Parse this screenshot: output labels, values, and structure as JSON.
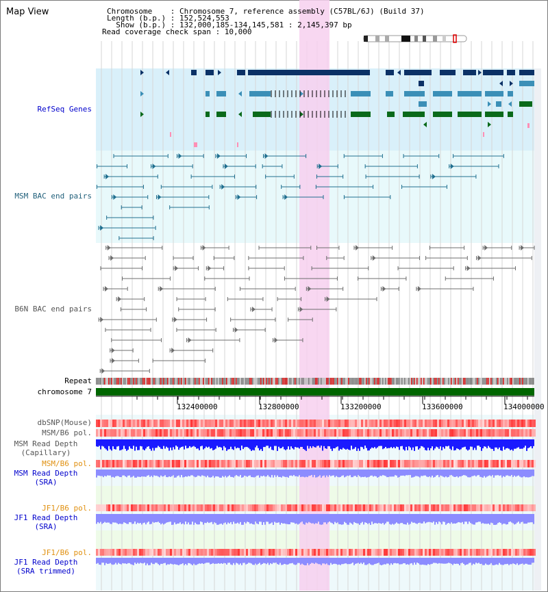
{
  "header": {
    "title": "Map View",
    "chromosome_line": "Chromosome    : Chromosome 7, reference assembly (C57BL/6J) (Build 37)",
    "length_line": "Length (b.p.) : 152,524,553",
    "show_line": "  Show (b.p.) : 132,000,185-134,145,581 : 2,145,397 bp",
    "coverage_line": "Read coverage check span : 10,000"
  },
  "tracks": {
    "refseq": "RefSeq Genes",
    "msm_bac": "MSM BAC end pairs",
    "b6n_bac": "B6N BAC end pairs",
    "repeat": "Repeat",
    "chromosome": "chromosome 7",
    "dbsnp": "dbSNP(Mouse)",
    "msm_b6_pol": "MSM/B6 pol.",
    "msm_read_depth_cap_1": "MSM Read Depth",
    "msm_read_depth_cap_2": "(Capillary)",
    "msm_b6_pol_2": "MSM/B6 pol.",
    "msm_read_depth_sra_1": "MSM Read Depth",
    "msm_read_depth_sra_2": "(SRA)",
    "jf1_b6_pol": "JF1/B6 pol.",
    "jf1_read_depth_sra_1": "JF1 Read Depth",
    "jf1_read_depth_sra_2": "(SRA)",
    "jf1_b6_pol_2": "JF1/B6 pol.",
    "jf1_read_depth_trim_1": "JF1 Read Depth",
    "jf1_read_depth_trim_2": "(SRA trimmed)"
  },
  "ruler": {
    "ticks": [
      "132400000",
      "132800000",
      "133200000",
      "133600000",
      "134000000"
    ]
  },
  "colors": {
    "refseq_bg": "#d9f0fa",
    "bac_bg": "#e8f9fb",
    "highlight": "#f7d0ee",
    "chromosome": "#006600",
    "read_depth_cap": "#1a1aff",
    "read_depth_sra": "#8c8cff"
  }
}
